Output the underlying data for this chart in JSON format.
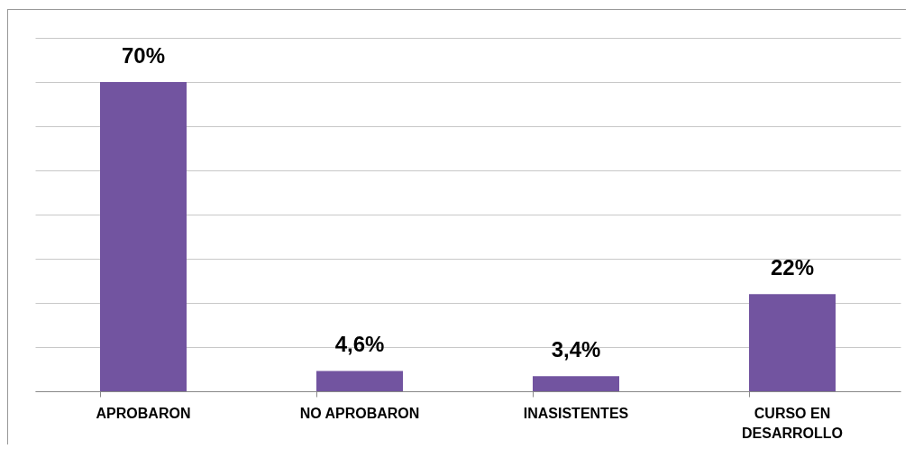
{
  "chart_data": {
    "type": "bar",
    "categories": [
      "APROBARON",
      "NO APROBARON",
      "INASISTENTES",
      "CURSO EN DESARROLLO"
    ],
    "values": [
      70,
      4.6,
      3.4,
      22
    ],
    "value_labels": [
      "70%",
      "4,6%",
      "3,4%",
      "22%"
    ],
    "color": "#7254a0",
    "ylim": [
      0,
      80
    ],
    "yticks": [
      0,
      10,
      20,
      30,
      40,
      50,
      60,
      70,
      80
    ],
    "tick_labels": "x",
    "grid": "y"
  }
}
